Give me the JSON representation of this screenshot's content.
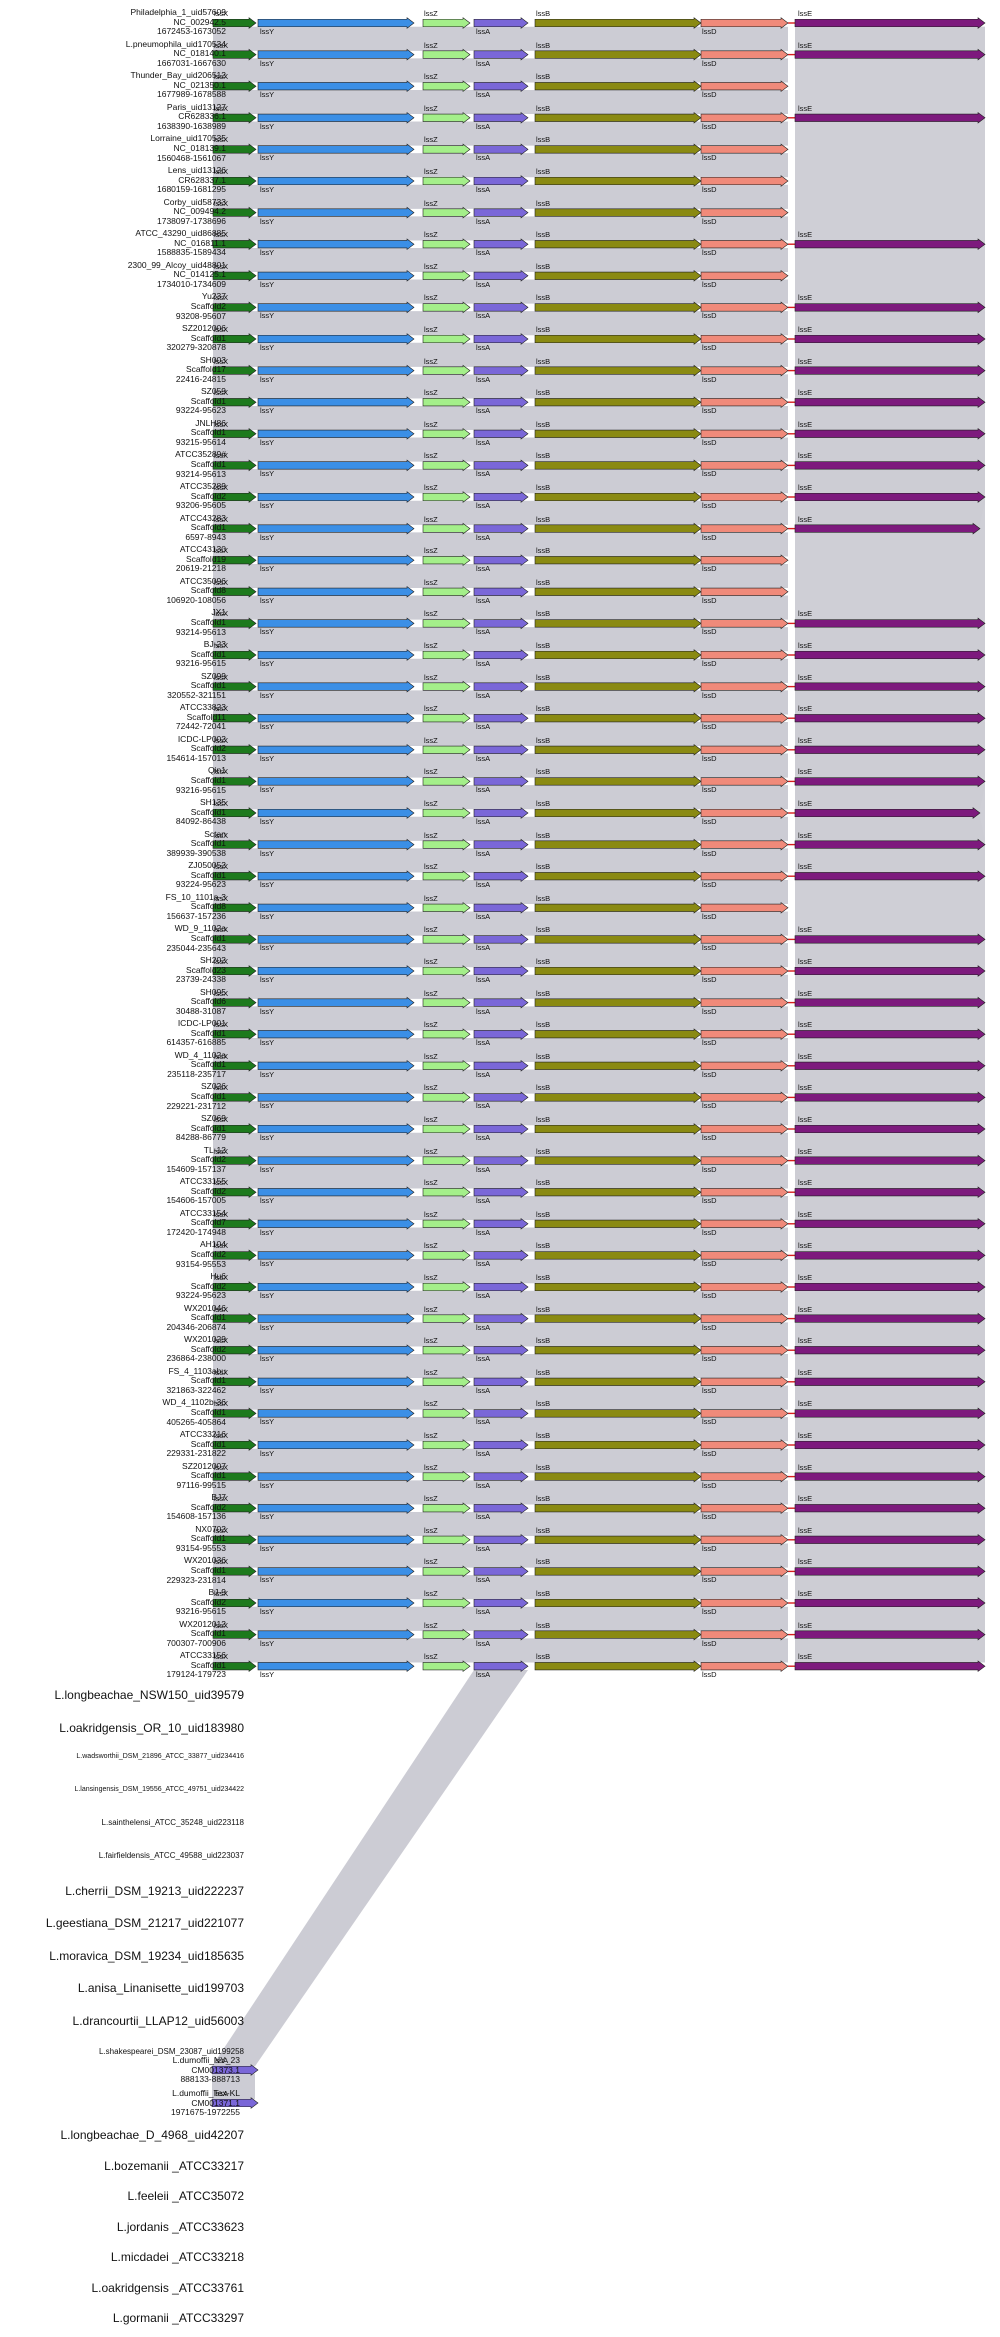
{
  "genes": {
    "lssX": {
      "label": "lssX",
      "color": "#1d7a1d"
    },
    "lssY": {
      "label": "lssY",
      "color": "#3b8fe6"
    },
    "lssZ": {
      "label": "lssZ",
      "color": "#a4ef8a"
    },
    "lssA": {
      "label": "lssA",
      "color": "#7a67d8"
    },
    "lssB": {
      "label": "lssB",
      "color": "#8a8a12"
    },
    "lssD": {
      "label": "lssD",
      "color": "#f08a7a"
    },
    "lssE": {
      "label": "lssE",
      "color": "#7d1a7d"
    }
  },
  "colors": {
    "band": "#ccccd4",
    "band_edge": "#b9b9c3",
    "connector": "#d91d1d"
  },
  "rows": [
    {
      "name": "Philadelphia_1_uid57609",
      "acc": "NC_002942.5",
      "coords": "1672453-1673052",
      "lssE": "long"
    },
    {
      "name": "L.pneumophila_uid170534",
      "acc": "NC_018140.1",
      "coords": "1667031-1667630",
      "lssE": "long"
    },
    {
      "name": "Thunder_Bay_uid206512",
      "acc": "NC_021350.1",
      "coords": "1677989-1678588",
      "lssE": "none"
    },
    {
      "name": "Paris_uid13127",
      "acc": "CR628336.1",
      "coords": "1638390-1638989",
      "lssE": "long"
    },
    {
      "name": "Lorraine_uid170535",
      "acc": "NC_018139.1",
      "coords": "1560468-1561067",
      "lssE": "none"
    },
    {
      "name": "Lens_uid13126",
      "acc": "CR628337.1",
      "coords": "1680159-1681295",
      "lssE": "none"
    },
    {
      "name": "Corby_uid58733",
      "acc": "NC_009494.2",
      "coords": "1738097-1738696",
      "lssE": "none"
    },
    {
      "name": "ATCC_43290_uid86885",
      "acc": "NC_016811.1",
      "coords": "1588835-1589434",
      "lssE": "long"
    },
    {
      "name": "2300_99_Alcoy_uid48801",
      "acc": "NC_014125.1",
      "coords": "1734010-1734609",
      "lssE": "none"
    },
    {
      "name": "Yu237",
      "acc": "Scaffold2",
      "coords": "93208-95607",
      "lssE": "long"
    },
    {
      "name": "SZ2012006",
      "acc": "Scaffold1",
      "coords": "320279-320878",
      "lssE": "long"
    },
    {
      "name": "SH003",
      "acc": "Scaffold17",
      "coords": "22416-24815",
      "lssE": "long"
    },
    {
      "name": "SZ059",
      "acc": "Scaffold1",
      "coords": "93224-95623",
      "lssE": "long"
    },
    {
      "name": "JNLH86",
      "acc": "Scaffold1",
      "coords": "93215-95614",
      "lssE": "long"
    },
    {
      "name": "ATCC35289#",
      "acc": "Scaffold1",
      "coords": "93214-95613",
      "lssE": "long"
    },
    {
      "name": "ATCC35289",
      "acc": "Scaffold2",
      "coords": "93206-95605",
      "lssE": "long"
    },
    {
      "name": "ATCC43283",
      "acc": "Scaffold1",
      "coords": "6597-8943",
      "lssE": "short"
    },
    {
      "name": "ATCC43130",
      "acc": "Scaffold19",
      "coords": "20619-21218",
      "lssE": "none"
    },
    {
      "name": "ATCC35096",
      "acc": "Scaffold8",
      "coords": "106920-108056",
      "lssE": "none"
    },
    {
      "name": "JX1",
      "acc": "Scaffold1",
      "coords": "93214-95613",
      "lssE": "long"
    },
    {
      "name": "BJ-23",
      "acc": "Scaffold1",
      "coords": "93216-95615",
      "lssE": "long"
    },
    {
      "name": "SZ099",
      "acc": "Scaffold1",
      "coords": "320552-321151",
      "lssE": "long"
    },
    {
      "name": "ATCC33823",
      "acc": "Scaffold11",
      "coords": "72442-72041",
      "lssE": "long"
    },
    {
      "name": "ICDC-LP002",
      "acc": "Scaffold2",
      "coords": "154614-157013",
      "lssE": "long"
    },
    {
      "name": "Qin1",
      "acc": "Scaffold1",
      "coords": "93216-95615",
      "lssE": "long"
    },
    {
      "name": "SH135",
      "acc": "Scaffold1",
      "coords": "84092-86438",
      "lssE": "short"
    },
    {
      "name": "Sctan",
      "acc": "Scaffold1",
      "coords": "389939-390538",
      "lssE": "long"
    },
    {
      "name": "ZJ050052",
      "acc": "Scaffold1",
      "coords": "93224-95623",
      "lssE": "long"
    },
    {
      "name": "FS_10_1101a-3",
      "acc": "Scaffold8",
      "coords": "156637-157236",
      "lssE": "none"
    },
    {
      "name": "WD_9_1102a",
      "acc": "Scaffold1",
      "coords": "235044-235643",
      "lssE": "long"
    },
    {
      "name": "SH202",
      "acc": "Scaffold23",
      "coords": "23739-24338",
      "lssE": "long"
    },
    {
      "name": "SH095",
      "acc": "Scaffold6",
      "coords": "30488-31087",
      "lssE": "long"
    },
    {
      "name": "ICDC-LP001",
      "acc": "Scaffold1",
      "coords": "614357-616885",
      "lssE": "long"
    },
    {
      "name": "WD_4_1102a",
      "acc": "Scaffold1",
      "coords": "235118-235717",
      "lssE": "long"
    },
    {
      "name": "SZ026",
      "acc": "Scaffold1",
      "coords": "229221-231712",
      "lssE": "long"
    },
    {
      "name": "SZ069",
      "acc": "Scaffold1",
      "coords": "84288-86779",
      "lssE": "long"
    },
    {
      "name": "TL-12",
      "acc": "Scaffold2",
      "coords": "154609-157137",
      "lssE": "long"
    },
    {
      "name": "ATCC33155",
      "acc": "Scaffold2",
      "coords": "154606-157005",
      "lssE": "long"
    },
    {
      "name": "ATCC33154",
      "acc": "Scaffold7",
      "coords": "172420-174948",
      "lssE": "long"
    },
    {
      "name": "AH104",
      "acc": "Scaffold2",
      "coords": "93154-95553",
      "lssE": "long"
    },
    {
      "name": "Hu6",
      "acc": "Scaffold2",
      "coords": "93224-95623",
      "lssE": "long"
    },
    {
      "name": "WX201046",
      "acc": "Scaffold1",
      "coords": "204346-206874",
      "lssE": "long"
    },
    {
      "name": "WX201029",
      "acc": "Scaffold2",
      "coords": "236864-238000",
      "lssE": "long"
    },
    {
      "name": "FS_4_1103abu",
      "acc": "Scaffold1",
      "coords": "321863-322462",
      "lssE": "long"
    },
    {
      "name": "WD_4_1102b-36",
      "acc": "Scaffold1",
      "coords": "405265-405864",
      "lssE": "long"
    },
    {
      "name": "ATCC33216",
      "acc": "Scaffold1",
      "coords": "229331-231822",
      "lssE": "long"
    },
    {
      "name": "SZ2012007",
      "acc": "Scaffold1",
      "coords": "97116-99515",
      "lssE": "long"
    },
    {
      "name": "BJ7",
      "acc": "Scaffold2",
      "coords": "154608-157136",
      "lssE": "long"
    },
    {
      "name": "NX0702",
      "acc": "Scaffold1",
      "coords": "93154-95553",
      "lssE": "long"
    },
    {
      "name": "WX201036",
      "acc": "Scaffold1",
      "coords": "229323-231814",
      "lssE": "long"
    },
    {
      "name": "BJ-9",
      "acc": "Scaffold2",
      "coords": "93216-95615",
      "lssE": "long"
    },
    {
      "name": "WX2012012",
      "acc": "Scaffold1",
      "coords": "700307-700906",
      "lssE": "long"
    },
    {
      "name": "ATCC33156",
      "acc": "Scaffold1",
      "coords": "179124-179723",
      "lssE": "long"
    }
  ],
  "organisms_a": [
    {
      "name": "L.longbeachae_NSW150_uid39579",
      "size": "normal"
    },
    {
      "name": "L.oakridgensis_OR_10_uid183980",
      "size": "normal"
    },
    {
      "name": "L.wadsworthii_DSM_21896_ATCC_33877_uid234416",
      "size": "tiny"
    },
    {
      "name": "L.lansingensis_DSM_19556_ATCC_49751_uid234422",
      "size": "tiny"
    },
    {
      "name": "L.sainthelensi_ATCC_35248_uid223118",
      "size": "small"
    },
    {
      "name": "L.fairfieldensis_ATCC_49588_uid223037",
      "size": "small"
    },
    {
      "name": "L.cherrii_DSM_19213_uid222237",
      "size": "normal"
    },
    {
      "name": "L.geestiana_DSM_21217_uid221077",
      "size": "normal"
    },
    {
      "name": "L.moravica_DSM_19234_uid185635",
      "size": "normal"
    },
    {
      "name": "L.anisa_Linanisette_uid199703",
      "size": "normal"
    },
    {
      "name": "L.drancourtii_LLAP12_uid56003",
      "size": "normal"
    },
    {
      "name": "L.shakespearei_DSM_23087_uid199258",
      "size": "small"
    }
  ],
  "dumoffii": [
    {
      "name": "L.dumoffii_NY_23",
      "acc": "CM001373.1",
      "coords": "888133-888713",
      "gene": "lssA"
    },
    {
      "name": "L.dumoffii_Tex-KL",
      "acc": "CM001371.1",
      "coords": "1971675-1972255",
      "gene": "lssA"
    }
  ],
  "organisms_b": [
    {
      "name": "L.longbeachae_D_4968_uid42207",
      "size": "normal"
    },
    {
      "name": "L.bozemanii _ATCC33217",
      "size": "normal"
    },
    {
      "name": "L.feeleii _ATCC35072",
      "size": "normal"
    },
    {
      "name": "L.jordanis _ATCC33623",
      "size": "normal"
    },
    {
      "name": "L.micdadei _ATCC33218",
      "size": "normal"
    },
    {
      "name": "L.oakridgensis _ATCC33761",
      "size": "normal"
    },
    {
      "name": "L.gormanii _ATCC33297",
      "size": "normal"
    }
  ]
}
